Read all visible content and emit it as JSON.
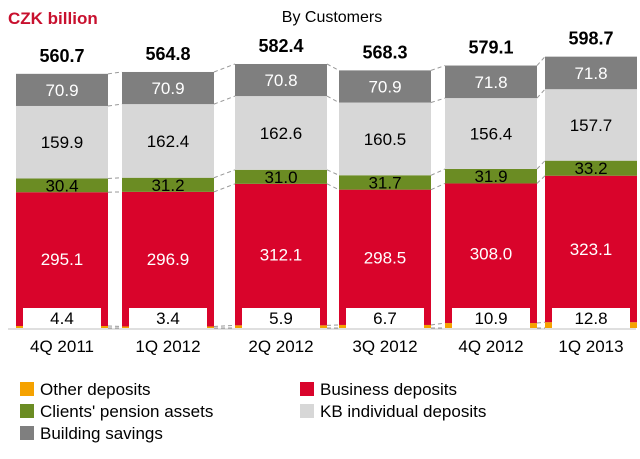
{
  "chart_data": {
    "type": "bar",
    "stacked": true,
    "unit_label": "CZK billion",
    "title": "By Customers",
    "categories": [
      "4Q 2011",
      "1Q 2012",
      "2Q 2012",
      "3Q 2012",
      "4Q 2012",
      "1Q 2013"
    ],
    "totals": [
      560.7,
      564.8,
      582.4,
      568.3,
      579.1,
      598.7
    ],
    "series": [
      {
        "name": "Other deposits",
        "values": [
          4.4,
          3.4,
          5.9,
          6.7,
          10.9,
          12.8
        ],
        "color": "#f5a200"
      },
      {
        "name": "Business deposits",
        "values": [
          295.1,
          296.9,
          312.1,
          298.5,
          308.0,
          323.1
        ],
        "color": "#d9042b"
      },
      {
        "name": "Clients' pension assets",
        "values": [
          30.4,
          31.2,
          31.0,
          31.7,
          31.9,
          33.2
        ],
        "color": "#6b8c23"
      },
      {
        "name": "KB individual deposits",
        "values": [
          159.9,
          162.4,
          162.6,
          160.5,
          156.4,
          157.7
        ],
        "color": "#d7d7d7"
      },
      {
        "name": "Building savings",
        "values": [
          70.9,
          70.9,
          70.8,
          70.9,
          71.8,
          71.8
        ],
        "color": "#7f7f7f"
      }
    ],
    "legend": [
      {
        "name": "Other deposits",
        "color": "#f5a200"
      },
      {
        "name": "Business deposits",
        "color": "#d9042b"
      },
      {
        "name": "Clients' pension assets",
        "color": "#6b8c23"
      },
      {
        "name": "KB individual deposits",
        "color": "#d7d7d7"
      },
      {
        "name": "Building savings",
        "color": "#7f7f7f"
      }
    ],
    "colors": {
      "unit_label": "#c8102e",
      "connector": "#999999"
    },
    "legend_position": "bottom",
    "grid": false
  }
}
